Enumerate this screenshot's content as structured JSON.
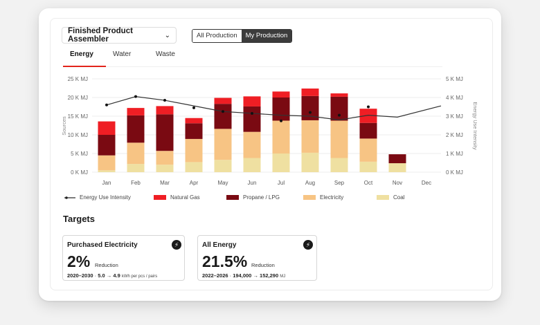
{
  "selector": {
    "label": "Finished Product Assembler",
    "chevron": "chevron-down-icon"
  },
  "toggle": {
    "options": [
      "All Production",
      "My Production"
    ],
    "selected": "My Production"
  },
  "tabs": [
    {
      "label": "Energy",
      "active": true
    },
    {
      "label": "Water",
      "active": false
    },
    {
      "label": "Waste",
      "active": false
    }
  ],
  "chart_data": {
    "type": "bar",
    "stacked": true,
    "categories": [
      "Jan",
      "Feb",
      "Mar",
      "Apr",
      "May",
      "Jun",
      "Jul",
      "Aug",
      "Sep",
      "Oct",
      "Nov",
      "Dec"
    ],
    "series": [
      {
        "name": "Coal",
        "color": "#efe0a1",
        "values": [
          0.5,
          2.2,
          2.0,
          2.7,
          3.3,
          3.8,
          5.0,
          5.2,
          3.8,
          2.8,
          2.4,
          0
        ]
      },
      {
        "name": "Electricity",
        "color": "#f7c484",
        "values": [
          4.0,
          5.7,
          3.7,
          6.2,
          8.3,
          7.0,
          8.8,
          8.7,
          10.0,
          6.2,
          0,
          0
        ]
      },
      {
        "name": "Propane / LPG",
        "color": "#7a0a12",
        "values": [
          5.5,
          7.3,
          9.8,
          4.2,
          6.7,
          6.8,
          6.2,
          6.5,
          6.4,
          4.2,
          2.4,
          0
        ]
      },
      {
        "name": "Natural Gas",
        "color": "#ef1e24",
        "values": [
          3.6,
          2.0,
          2.2,
          1.4,
          1.6,
          2.7,
          1.6,
          2.0,
          0.9,
          3.8,
          0,
          0
        ]
      }
    ],
    "line": {
      "name": "Energy Use Intensity",
      "axis": "right",
      "values": [
        3.6,
        4.05,
        3.85,
        3.55,
        3.25,
        3.15,
        3.05,
        3.0,
        2.8,
        3.05,
        2.95,
        3.55
      ]
    },
    "dots": [
      3.6,
      4.05,
      3.85,
      3.45,
      3.25,
      3.15,
      2.75,
      3.2,
      3.05,
      3.5,
      null,
      null
    ],
    "ylabel": "Sources",
    "y2label": "Energy Use Intensity",
    "yticks": [
      "0 K MJ",
      "5 K MJ",
      "10 K MJ",
      "15 K MJ",
      "20 K MJ",
      "25 K MJ"
    ],
    "y2ticks": [
      "0 K MJ",
      "1 K MJ",
      "2 K MJ",
      "3 K MJ",
      "4 K MJ",
      "5 K MJ"
    ],
    "ylim": [
      0,
      25
    ],
    "y2lim": [
      0,
      5
    ],
    "grid": true
  },
  "legend": [
    {
      "label": "Energy Use Intensity",
      "kind": "line",
      "color": "#222222"
    },
    {
      "label": "Natural Gas",
      "kind": "swatch",
      "color": "#ef1e24"
    },
    {
      "label": "Propane / LPG",
      "kind": "swatch",
      "color": "#7a0a12"
    },
    {
      "label": "Electricity",
      "kind": "swatch",
      "color": "#f7c484"
    },
    {
      "label": "Coal",
      "kind": "swatch",
      "color": "#efe0a1"
    }
  ],
  "targets": {
    "title": "Targets",
    "cards": [
      {
        "name": "Purchased Electricity",
        "icon": "lightning-icon",
        "value": "2%",
        "unit": "Reduction",
        "period": "2020–2030",
        "from": "5.0",
        "arrow": "→",
        "to": "4.9",
        "measure": "kWh per pcs / pairs"
      },
      {
        "name": "All Energy",
        "icon": "lightning-icon",
        "value": "21.5%",
        "unit": "Reduction",
        "period": "2022–2026",
        "from": "194,000",
        "arrow": "→",
        "to": "152,290",
        "measure": "MJ"
      }
    ]
  }
}
